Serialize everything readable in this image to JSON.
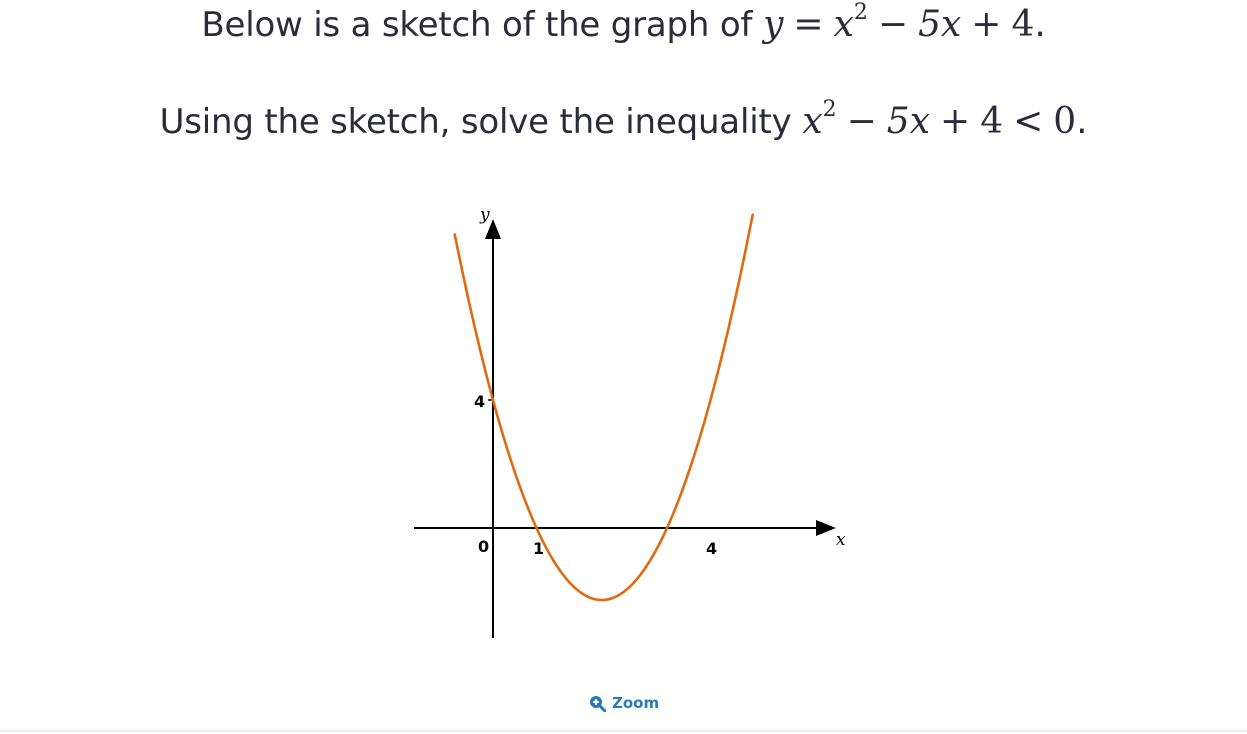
{
  "question": {
    "line1_text": "Below is a sketch of the graph of",
    "line1_math": {
      "lhs": "y",
      "eq": "=",
      "x": "x",
      "exp": "2",
      "minus": "−",
      "term2": "5x",
      "plus": "+",
      "const": "4",
      "end": "."
    },
    "line2_text": "Using the sketch, solve the inequality",
    "line2_math": {
      "x": "x",
      "exp": "2",
      "minus": "−",
      "term2": "5x",
      "plus": "+",
      "const": "4",
      "lt": "<",
      "rhs": "0",
      "end": "."
    }
  },
  "chart_data": {
    "type": "line",
    "function": "y = x^2 - 5x + 4",
    "xlabel": "x",
    "ylabel": "y",
    "x_tick_labels": [
      "0",
      "1",
      "4"
    ],
    "y_tick_labels": [
      "4"
    ],
    "x": [
      -0.6,
      -0.2,
      0,
      0.5,
      1,
      1.5,
      2,
      2.5,
      3,
      3.5,
      4,
      4.5,
      5,
      5.6
    ],
    "series": [
      {
        "values": [
          7.36,
          5.04,
          4,
          1.75,
          0,
          -1.25,
          -2,
          -2.25,
          -2,
          -1.25,
          0,
          1.75,
          4,
          7.36
        ]
      }
    ],
    "xlim": [
      -1.2,
      5.4
    ],
    "ylim": [
      -2.9,
      7.5
    ],
    "curve_color": "#e06a10",
    "axis_color": "#000000"
  },
  "zoom": {
    "label": "Zoom",
    "icon": "zoom-in-icon",
    "color": "#2a7ab8"
  }
}
